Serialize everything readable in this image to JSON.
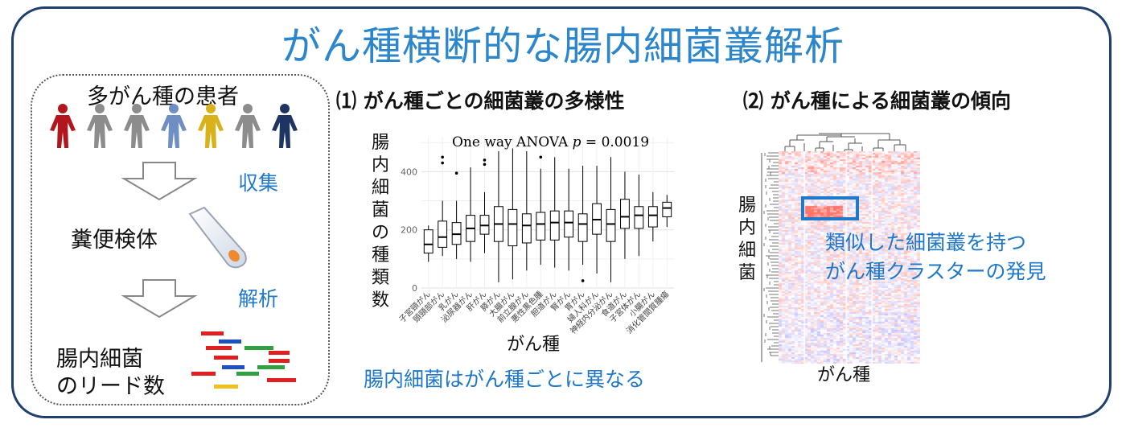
{
  "title": "がん種横断的な腸内細菌叢解析",
  "left": {
    "patients_label": "多がん種の患者",
    "patient_colors": [
      "#b3151c",
      "#8c8c8c",
      "#8c8c8c",
      "#6f8fc4",
      "#d8b21a",
      "#8c8c8c",
      "#1e3563"
    ],
    "step1": "収集",
    "sample_label": "糞便検体",
    "step2": "解析",
    "reads_line1": "腸内細菌",
    "reads_line2": "のリード数"
  },
  "panel1": {
    "heading": "⑴ がん種ごとの細菌叢の多様性",
    "ylabel_chars": [
      "腸",
      "内",
      "細",
      "菌",
      "の",
      "種",
      "類",
      "数"
    ],
    "xlabel": "がん種",
    "anova_prefix": "One way ANOVA ",
    "anova_p": "p",
    "anova_suffix": " = 0.0019",
    "conclusion": "腸内細菌はがん種ごとに異なる"
  },
  "panel2": {
    "heading": "⑵ がん種による細菌叢の傾向",
    "ylabel_chars": [
      "腸",
      "内",
      "細",
      "菌"
    ],
    "xlabel": "がん種",
    "callout_line1": "類似した細菌叢を持つ",
    "callout_line2": "がん種クラスターの発見",
    "accent": "#1f78c8"
  },
  "chart_data": {
    "type": "box",
    "title": "One way ANOVA p = 0.0019",
    "xlabel": "がん種",
    "ylabel": "腸内細菌の種類数",
    "ylim": [
      0,
      520
    ],
    "yticks": [
      0,
      200,
      400
    ],
    "grid": true,
    "categories": [
      "子宮頸がん",
      "頭頸部がん",
      "乳がん",
      "泌尿器がん",
      "肝がん",
      "膵がん",
      "大腸がん",
      "前立腺がん",
      "悪性黒色腫",
      "胆道がん",
      "腎がん",
      "胃がん",
      "婦人科がん",
      "神経内分泌がん",
      "食道がん",
      "子宮体がん",
      "小腸がん",
      "消化管間質腫瘍"
    ],
    "boxes": [
      {
        "min": 90,
        "q1": 120,
        "median": 150,
        "q3": 200,
        "max": 215,
        "outliers": []
      },
      {
        "min": 110,
        "q1": 140,
        "median": 175,
        "q3": 230,
        "max": 300,
        "outliers": [
          430,
          450
        ]
      },
      {
        "min": 100,
        "q1": 150,
        "median": 185,
        "q3": 225,
        "max": 300,
        "outliers": [
          395
        ]
      },
      {
        "min": 90,
        "q1": 160,
        "median": 205,
        "q3": 250,
        "max": 415,
        "outliers": []
      },
      {
        "min": 120,
        "q1": 185,
        "median": 215,
        "q3": 250,
        "max": 330,
        "outliers": [
          425,
          440
        ]
      },
      {
        "min": 20,
        "q1": 160,
        "median": 220,
        "q3": 280,
        "max": 470,
        "outliers": []
      },
      {
        "min": 30,
        "q1": 145,
        "median": 220,
        "q3": 270,
        "max": 480,
        "outliers": []
      },
      {
        "min": 60,
        "q1": 155,
        "median": 215,
        "q3": 255,
        "max": 470,
        "outliers": []
      },
      {
        "min": 80,
        "q1": 165,
        "median": 220,
        "q3": 260,
        "max": 410,
        "outliers": [
          450
        ]
      },
      {
        "min": 70,
        "q1": 165,
        "median": 225,
        "q3": 265,
        "max": 450,
        "outliers": []
      },
      {
        "min": 60,
        "q1": 175,
        "median": 225,
        "q3": 265,
        "max": 410,
        "outliers": []
      },
      {
        "min": 80,
        "q1": 160,
        "median": 220,
        "q3": 255,
        "max": 420,
        "outliers": [
          25
        ]
      },
      {
        "min": 50,
        "q1": 185,
        "median": 235,
        "q3": 290,
        "max": 420,
        "outliers": []
      },
      {
        "min": 20,
        "q1": 160,
        "median": 220,
        "q3": 270,
        "max": 450,
        "outliers": []
      },
      {
        "min": 100,
        "q1": 205,
        "median": 245,
        "q3": 305,
        "max": 400,
        "outliers": []
      },
      {
        "min": 110,
        "q1": 205,
        "median": 250,
        "q3": 280,
        "max": 390,
        "outliers": []
      },
      {
        "min": 160,
        "q1": 210,
        "median": 250,
        "q3": 280,
        "max": 330,
        "outliers": []
      },
      {
        "min": 210,
        "q1": 245,
        "median": 275,
        "q3": 295,
        "max": 320,
        "outliers": []
      }
    ]
  }
}
